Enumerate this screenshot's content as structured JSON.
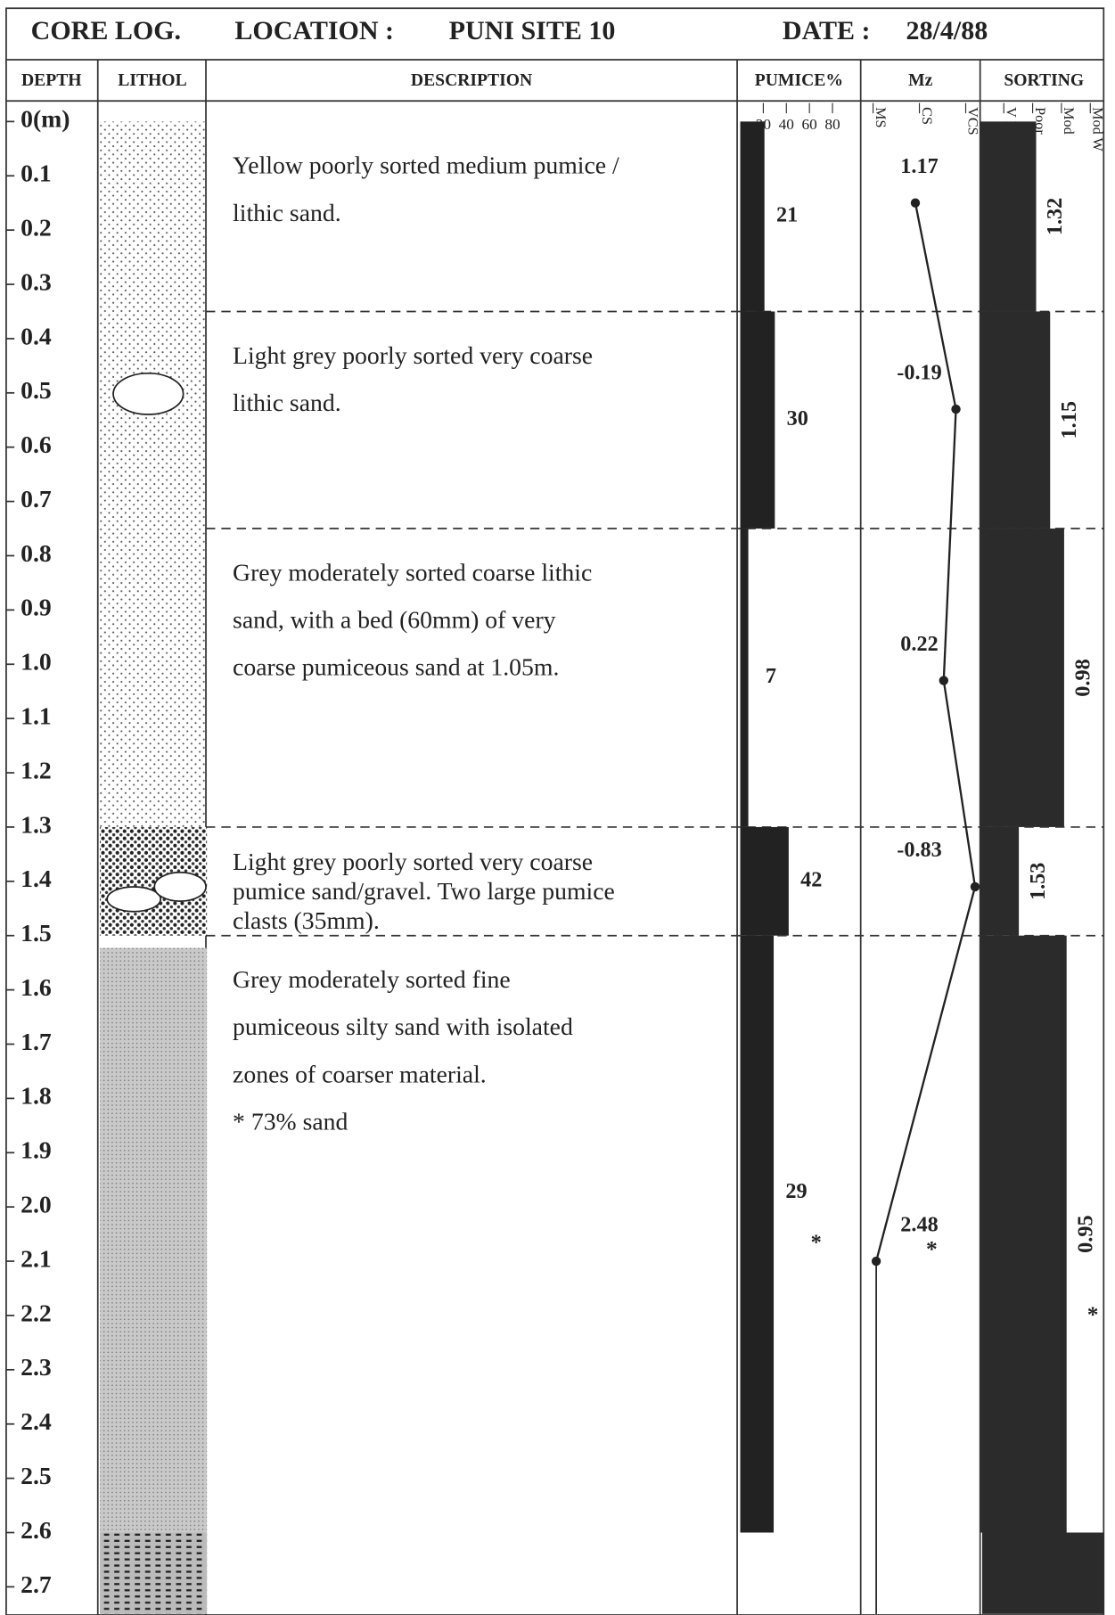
{
  "header": {
    "title": "CORE LOG.",
    "location_label": "LOCATION :",
    "location": "PUNI SITE 10",
    "date_label": "DATE :",
    "date": "28/4/88"
  },
  "columns": [
    "DEPTH",
    "LITHOL",
    "DESCRIPTION",
    "PUMICE%",
    "Mz",
    "SORTING"
  ],
  "depth_axis": {
    "lim": [
      0,
      2.75
    ],
    "ticks": [
      {
        "value": 0,
        "label": "0(m)"
      },
      0.1,
      0.2,
      0.3,
      0.4,
      0.5,
      0.6,
      0.7,
      0.8,
      0.9,
      {
        "value": 1,
        "label": "1.0"
      },
      1.1,
      1.2,
      1.3,
      1.4,
      1.5,
      1.6,
      1.7,
      1.8,
      1.9,
      {
        "value": 2,
        "label": "2.0"
      },
      2.1,
      2.2,
      2.3,
      2.4,
      2.5,
      2.6,
      2.7
    ]
  },
  "pumice_axis": {
    "lim": [
      0,
      100
    ],
    "ticks": [
      20,
      40,
      60,
      80
    ]
  },
  "mz_axis": {
    "lim": [
      3,
      -1
    ],
    "labels": [
      "MS",
      "CS",
      "VCS"
    ]
  },
  "sorting_axis": {
    "lim": [
      2,
      0.5
    ],
    "labels": [
      "V Poor",
      "Poor",
      "Mod",
      "Mod W"
    ]
  },
  "units": [
    {
      "top": 0,
      "bottom": 0.35,
      "description": [
        "Yellow poorly sorted medium pumice /",
        "lithic sand."
      ],
      "pumice": 21,
      "mz": 1.17,
      "mz_depth": 0.15,
      "sorting": 1.32
    },
    {
      "top": 0.35,
      "bottom": 0.75,
      "description": [
        "Light grey poorly sorted very coarse",
        "lithic sand."
      ],
      "pumice": 30,
      "mz": -0.19,
      "mz_depth": 0.53,
      "sorting": 1.15
    },
    {
      "top": 0.75,
      "bottom": 1.3,
      "description": [
        "Grey moderately sorted coarse lithic",
        "sand, with a bed (60mm) of very",
        "coarse pumiceous sand at 1.05m."
      ],
      "pumice": 7,
      "mz": 0.22,
      "mz_depth": 1.03,
      "sorting": 0.98
    },
    {
      "top": 1.3,
      "bottom": 1.5,
      "description": [
        "Light grey poorly sorted very coarse",
        "pumice sand/gravel. Two large pumice",
        "clasts (35mm)."
      ],
      "pumice": 42,
      "mz": -0.83,
      "mz_depth": 1.41,
      "sorting": 1.53
    },
    {
      "top": 1.5,
      "bottom": 2.6,
      "description": [
        "Grey moderately sorted fine",
        "pumiceous silty sand  with isolated",
        "zones of coarser material.",
        "* 73% sand"
      ],
      "pumice": 29,
      "pumice_note": "*",
      "mz": 2.48,
      "mz_note": "*",
      "mz_depth": 2.1,
      "sorting": 0.95,
      "sorting_note": "*"
    }
  ]
}
